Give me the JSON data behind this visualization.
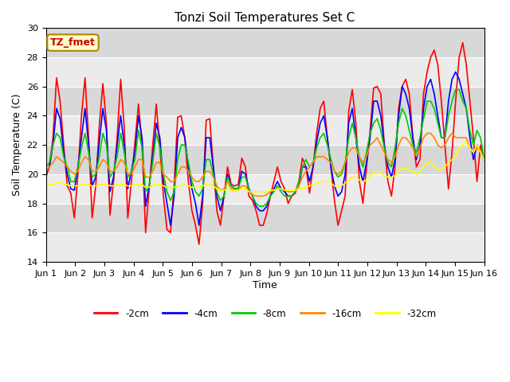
{
  "title": "Tonzi Soil Temperatures Set C",
  "xlabel": "Time",
  "ylabel": "Soil Temperature (C)",
  "ylim": [
    14,
    30
  ],
  "yticks": [
    14,
    16,
    18,
    20,
    22,
    24,
    26,
    28,
    30
  ],
  "annotation": "TZ_fmet",
  "bg_light": "#ebebeb",
  "bg_dark": "#d8d8d8",
  "legend": [
    "-2cm",
    "-4cm",
    "-8cm",
    "-16cm",
    "-32cm"
  ],
  "legend_colors": [
    "#ff0000",
    "#0000ff",
    "#00cc00",
    "#ff8800",
    "#ffff00"
  ],
  "xtick_labels": [
    "Jun 1",
    "Jun 2",
    "Jun 3",
    "Jun 4",
    "Jun 5",
    "Jun 6",
    "Jun 7",
    "Jun 8",
    "Jun 9",
    "Jun 10",
    "Jun 11",
    "Jun 12",
    "Jun 13",
    "Jun 14",
    "Jun 15",
    "Jun 16"
  ],
  "series_2cm": [
    19.8,
    20.5,
    22.5,
    26.6,
    25.0,
    22.0,
    19.2,
    18.7,
    17.0,
    20.0,
    24.0,
    26.6,
    22.5,
    17.0,
    19.2,
    23.3,
    26.2,
    23.5,
    17.2,
    19.5,
    22.5,
    26.5,
    23.2,
    17.0,
    19.5,
    22.2,
    24.8,
    22.0,
    16.0,
    19.0,
    22.0,
    24.8,
    21.8,
    18.5,
    16.2,
    16.0,
    19.2,
    23.9,
    24.0,
    22.5,
    19.5,
    17.5,
    16.5,
    15.2,
    18.0,
    23.7,
    23.8,
    20.5,
    17.5,
    16.5,
    18.5,
    20.5,
    19.3,
    19.2,
    19.3,
    21.1,
    20.5,
    18.5,
    18.2,
    17.5,
    16.5,
    16.5,
    17.3,
    18.5,
    19.5,
    20.5,
    19.5,
    19.0,
    18.0,
    18.5,
    18.7,
    19.5,
    21.1,
    20.5,
    18.7,
    20.5,
    22.8,
    24.5,
    25.0,
    22.5,
    20.5,
    18.2,
    16.5,
    17.5,
    18.5,
    24.3,
    25.8,
    23.5,
    19.5,
    18.0,
    20.5,
    23.0,
    25.9,
    26.0,
    25.5,
    22.0,
    19.5,
    18.5,
    20.5,
    24.5,
    26.0,
    26.5,
    25.5,
    22.5,
    20.5,
    21.0,
    25.5,
    27.0,
    28.0,
    28.5,
    27.5,
    25.0,
    22.0,
    19.0,
    21.5,
    25.0,
    28.0,
    29.0,
    27.5,
    25.0,
    22.5,
    19.5,
    22.0,
    21.0
  ],
  "series_4cm": [
    20.2,
    20.5,
    22.0,
    24.5,
    23.8,
    21.5,
    20.0,
    19.0,
    18.9,
    20.5,
    22.5,
    24.5,
    22.0,
    19.2,
    19.8,
    22.2,
    24.5,
    23.0,
    18.8,
    19.8,
    22.0,
    24.0,
    22.0,
    19.0,
    20.2,
    21.5,
    24.0,
    22.5,
    17.8,
    19.2,
    21.2,
    23.5,
    22.5,
    19.5,
    18.0,
    16.5,
    18.5,
    22.5,
    23.2,
    22.5,
    20.5,
    19.0,
    18.0,
    16.5,
    18.5,
    22.5,
    22.5,
    20.5,
    18.5,
    17.5,
    18.5,
    20.0,
    19.2,
    19.0,
    19.0,
    20.2,
    20.0,
    19.0,
    18.5,
    17.8,
    17.5,
    17.5,
    17.8,
    18.5,
    19.0,
    19.5,
    19.0,
    18.8,
    18.5,
    18.5,
    18.8,
    19.2,
    20.5,
    20.5,
    19.5,
    20.5,
    22.2,
    23.5,
    24.0,
    22.5,
    20.5,
    19.2,
    18.5,
    18.8,
    20.0,
    23.5,
    24.5,
    22.5,
    20.5,
    19.5,
    20.8,
    22.5,
    25.0,
    25.0,
    24.0,
    22.0,
    20.5,
    19.8,
    21.0,
    24.0,
    26.0,
    25.5,
    24.5,
    22.5,
    21.0,
    22.0,
    24.5,
    26.0,
    26.5,
    25.5,
    24.0,
    22.5,
    22.5,
    25.0,
    26.5,
    27.0,
    26.5,
    25.5,
    24.5,
    22.5,
    21.0,
    22.0,
    21.5,
    21.0
  ],
  "series_8cm": [
    20.5,
    20.8,
    22.0,
    22.8,
    22.5,
    21.2,
    20.5,
    19.5,
    19.5,
    20.5,
    21.8,
    22.8,
    21.5,
    19.8,
    20.0,
    21.2,
    22.8,
    22.0,
    19.8,
    20.2,
    21.2,
    22.8,
    21.5,
    19.8,
    20.2,
    21.0,
    23.0,
    21.8,
    18.8,
    19.2,
    20.8,
    22.8,
    21.8,
    20.0,
    18.8,
    18.2,
    18.8,
    21.0,
    22.0,
    22.0,
    20.8,
    19.5,
    18.8,
    18.5,
    19.0,
    21.0,
    21.0,
    20.0,
    18.8,
    18.2,
    18.5,
    19.8,
    19.2,
    19.0,
    19.0,
    19.8,
    19.8,
    19.0,
    18.5,
    18.0,
    17.8,
    17.8,
    18.0,
    18.5,
    18.8,
    19.2,
    18.8,
    18.5,
    18.5,
    18.5,
    18.8,
    19.5,
    20.5,
    21.0,
    20.5,
    20.8,
    21.8,
    22.5,
    22.8,
    22.0,
    21.0,
    20.2,
    19.8,
    20.0,
    20.8,
    22.5,
    23.5,
    22.5,
    21.2,
    20.5,
    21.5,
    22.8,
    23.5,
    23.8,
    23.0,
    21.8,
    20.8,
    20.5,
    21.8,
    23.5,
    24.5,
    24.0,
    23.0,
    22.0,
    21.5,
    22.5,
    23.8,
    25.0,
    25.0,
    24.5,
    23.5,
    22.5,
    22.5,
    24.0,
    25.0,
    25.8,
    25.8,
    25.0,
    24.5,
    23.0,
    22.0,
    23.0,
    22.5,
    21.0
  ],
  "series_16cm": [
    20.2,
    20.5,
    20.8,
    21.2,
    21.0,
    20.8,
    20.5,
    20.2,
    20.0,
    20.2,
    20.8,
    21.2,
    21.0,
    20.2,
    20.2,
    20.5,
    21.0,
    20.8,
    20.2,
    20.2,
    20.5,
    21.0,
    20.8,
    20.0,
    20.0,
    20.5,
    21.0,
    21.0,
    19.8,
    19.8,
    20.2,
    20.8,
    20.8,
    20.0,
    19.8,
    19.5,
    19.5,
    20.0,
    20.5,
    20.5,
    20.2,
    19.8,
    19.5,
    19.5,
    19.8,
    20.2,
    20.2,
    19.8,
    19.2,
    18.9,
    19.0,
    19.5,
    19.0,
    18.9,
    18.9,
    19.2,
    19.2,
    18.8,
    18.6,
    18.5,
    18.5,
    18.5,
    18.6,
    18.8,
    18.9,
    19.0,
    19.0,
    18.9,
    18.8,
    18.8,
    18.9,
    19.2,
    19.8,
    20.2,
    20.5,
    20.8,
    21.2,
    21.2,
    21.2,
    21.0,
    20.8,
    20.2,
    20.0,
    20.2,
    20.8,
    21.5,
    21.8,
    21.8,
    21.2,
    20.8,
    21.2,
    22.0,
    22.2,
    22.5,
    22.0,
    21.5,
    21.0,
    20.8,
    21.2,
    22.0,
    22.5,
    22.5,
    22.2,
    21.8,
    21.2,
    21.8,
    22.5,
    22.8,
    22.8,
    22.5,
    22.0,
    21.8,
    22.0,
    22.5,
    22.8,
    22.5,
    22.5,
    22.5,
    22.5,
    21.8,
    21.5,
    21.8,
    21.5,
    21.0
  ],
  "series_32cm": [
    19.3,
    19.3,
    19.3,
    19.4,
    19.4,
    19.3,
    19.3,
    19.2,
    19.2,
    19.2,
    19.3,
    19.3,
    19.3,
    19.2,
    19.2,
    19.3,
    19.3,
    19.3,
    19.2,
    19.2,
    19.3,
    19.3,
    19.3,
    19.2,
    19.2,
    19.3,
    19.3,
    19.3,
    19.1,
    19.1,
    19.2,
    19.3,
    19.3,
    19.2,
    19.1,
    19.1,
    19.1,
    19.2,
    19.2,
    19.3,
    19.2,
    19.1,
    19.1,
    19.1,
    19.2,
    19.3,
    19.3,
    19.2,
    19.0,
    18.9,
    18.9,
    19.0,
    18.9,
    18.9,
    18.9,
    19.0,
    19.0,
    18.8,
    18.8,
    18.8,
    18.8,
    18.8,
    18.8,
    18.9,
    18.9,
    19.0,
    19.0,
    18.9,
    18.9,
    18.9,
    18.9,
    19.0,
    19.0,
    19.1,
    19.2,
    19.3,
    19.4,
    19.5,
    19.5,
    19.5,
    19.4,
    19.2,
    19.1,
    19.2,
    19.4,
    19.6,
    19.8,
    19.8,
    19.6,
    19.5,
    19.6,
    19.9,
    20.1,
    20.2,
    20.1,
    19.9,
    19.8,
    19.8,
    19.9,
    20.2,
    20.4,
    20.4,
    20.3,
    20.2,
    20.0,
    20.2,
    20.5,
    20.8,
    20.8,
    20.5,
    20.4,
    20.3,
    20.5,
    20.8,
    21.0,
    21.2,
    21.8,
    22.0,
    22.2,
    21.8,
    21.5,
    22.0,
    21.5,
    21.0
  ]
}
